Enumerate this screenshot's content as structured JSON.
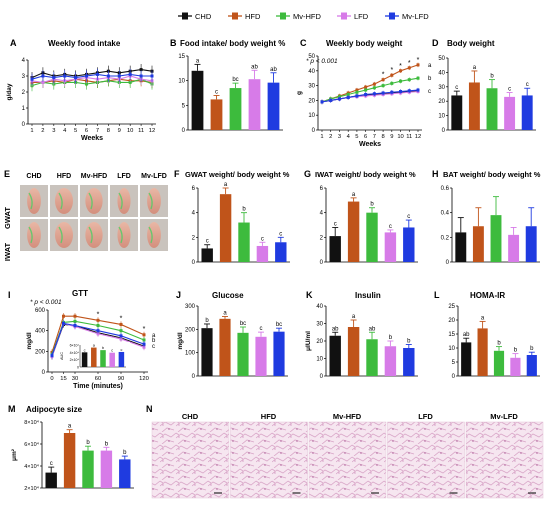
{
  "legend": [
    {
      "label": "CHD",
      "color": "#111111"
    },
    {
      "label": "HFD",
      "color": "#c0541a"
    },
    {
      "label": "Mv-HFD",
      "color": "#3dbb3d"
    },
    {
      "label": "LFD",
      "color": "#d77be8"
    },
    {
      "label": "Mv-LFD",
      "color": "#1f3be0"
    }
  ],
  "panels": {
    "A": {
      "letter": "A",
      "title": "Weekly food intake"
    },
    "B": {
      "letter": "B",
      "title": "Food intake/ body weight %"
    },
    "C": {
      "letter": "C",
      "title": "Weekly body weight",
      "note": "* p < 0.001"
    },
    "D": {
      "letter": "D",
      "title": "Body weight"
    },
    "E": {
      "letter": "E",
      "cols": [
        "CHD",
        "HFD",
        "Mv-HFD",
        "LFD",
        "Mv-LFD"
      ],
      "rows": [
        "GWAT",
        "IWAT"
      ]
    },
    "F": {
      "letter": "F",
      "title": "GWAT weight/ body weight %"
    },
    "G": {
      "letter": "G",
      "title": "IWAT weight/ body weight %"
    },
    "H": {
      "letter": "H",
      "title": "BAT weight/ body weight %"
    },
    "I": {
      "letter": "I",
      "title": "GTT",
      "note": "* p < 0.001"
    },
    "J": {
      "letter": "J",
      "title": "Glucose"
    },
    "K": {
      "letter": "K",
      "title": "Insulin"
    },
    "L": {
      "letter": "L",
      "title": "HOMA-IR"
    },
    "M": {
      "letter": "M",
      "title": "Adipocyte size"
    },
    "N": {
      "letter": "N",
      "cols": [
        "CHD",
        "HFD",
        "Mv-HFD",
        "LFD",
        "Mv-LFD"
      ]
    }
  },
  "chart_data": [
    {
      "id": "A",
      "type": "line",
      "title": "Weekly food intake",
      "xlabel": "Weeks",
      "ylabel": "g/day",
      "x": [
        1,
        2,
        3,
        4,
        5,
        6,
        7,
        8,
        9,
        10,
        11,
        12
      ],
      "ylim": [
        0,
        4
      ],
      "yticks": [
        0,
        1,
        2,
        3,
        4
      ],
      "series": [
        {
          "name": "CHD",
          "values": [
            2.9,
            3.2,
            3.0,
            3.1,
            3.0,
            3.1,
            3.2,
            3.3,
            3.2,
            3.3,
            3.4,
            3.3
          ]
        },
        {
          "name": "HFD",
          "values": [
            2.6,
            2.6,
            2.7,
            2.6,
            2.8,
            2.7,
            2.6,
            2.7,
            2.8,
            2.7,
            2.7,
            2.6
          ]
        },
        {
          "name": "Mv-HFD",
          "values": [
            2.4,
            2.6,
            2.5,
            2.6,
            2.6,
            2.5,
            2.6,
            2.7,
            2.6,
            2.6,
            2.8,
            2.5
          ]
        },
        {
          "name": "LFD",
          "values": [
            2.7,
            2.6,
            2.8,
            2.7,
            2.8,
            2.9,
            2.8,
            2.9,
            2.8,
            3.0,
            2.8,
            2.7
          ]
        },
        {
          "name": "Mv-LFD",
          "values": [
            2.8,
            3.0,
            2.9,
            3.0,
            2.9,
            3.0,
            3.1,
            3.0,
            3.0,
            3.1,
            3.0,
            3.0
          ]
        }
      ]
    },
    {
      "id": "B",
      "type": "bar",
      "title": "Food intake/ body weight %",
      "ylim": [
        0,
        15
      ],
      "yticks": [
        0,
        5,
        10,
        15
      ],
      "values": [
        12,
        6.2,
        8.5,
        10.3,
        9.6
      ],
      "errors": [
        1.3,
        0.8,
        1.0,
        1.8,
        2.0
      ],
      "labels": [
        "a",
        "c",
        "bc",
        "ab",
        "ab"
      ]
    },
    {
      "id": "C",
      "type": "line",
      "title": "Weekly body weight",
      "xlabel": "Weeks",
      "ylabel": "g",
      "x": [
        1,
        2,
        3,
        4,
        5,
        6,
        7,
        8,
        9,
        10,
        11,
        12
      ],
      "ylim": [
        0,
        50
      ],
      "yticks": [
        0,
        10,
        20,
        30,
        40,
        50
      ],
      "series": [
        {
          "name": "CHD",
          "values": [
            19,
            20,
            21,
            22,
            23,
            23.5,
            24,
            24.5,
            25,
            25.5,
            26,
            26.5
          ]
        },
        {
          "name": "HFD",
          "values": [
            19,
            21,
            23,
            25,
            27,
            29,
            31,
            34,
            37,
            40,
            42,
            44
          ]
        },
        {
          "name": "Mv-HFD",
          "values": [
            19,
            21,
            22.5,
            24,
            25.5,
            27,
            28.5,
            30,
            31.5,
            33,
            34,
            35
          ]
        },
        {
          "name": "LFD",
          "values": [
            19,
            20,
            21,
            22,
            22.5,
            23,
            23.5,
            24,
            24.5,
            25,
            25.5,
            26
          ]
        },
        {
          "name": "Mv-LFD",
          "values": [
            19,
            20,
            21,
            22,
            23,
            24,
            24.5,
            25,
            25.5,
            26,
            26.5,
            27
          ]
        }
      ],
      "end_labels": [
        "a",
        "b",
        "c"
      ],
      "star_weeks": [
        8,
        9,
        10,
        11,
        12
      ]
    },
    {
      "id": "D",
      "type": "bar",
      "title": "Body weight",
      "ylim": [
        0,
        50
      ],
      "yticks": [
        0,
        10,
        20,
        30,
        40,
        50
      ],
      "values": [
        24,
        33,
        29,
        23,
        24
      ],
      "errors": [
        3,
        8,
        6,
        3,
        5
      ],
      "labels": [
        "c",
        "a",
        "b",
        "c",
        "c"
      ]
    },
    {
      "id": "F",
      "type": "bar",
      "title": "GWAT weight/ body weight %",
      "ylim": [
        0,
        6
      ],
      "yticks": [
        0,
        2,
        4,
        6
      ],
      "values": [
        1.1,
        5.5,
        3.2,
        1.3,
        1.6
      ],
      "errors": [
        0.3,
        0.5,
        0.8,
        0.3,
        0.4
      ],
      "labels": [
        "c",
        "a",
        "b",
        "c",
        "c"
      ]
    },
    {
      "id": "G",
      "type": "bar",
      "title": "IWAT weight/ body weight %",
      "ylim": [
        0,
        6
      ],
      "yticks": [
        0,
        2,
        4,
        6
      ],
      "values": [
        2.1,
        4.9,
        4.0,
        2.4,
        2.8
      ],
      "errors": [
        0.7,
        0.3,
        0.4,
        0.2,
        0.6
      ],
      "labels": [
        "c",
        "a",
        "b",
        "c",
        "c"
      ]
    },
    {
      "id": "H",
      "type": "bar",
      "title": "BAT weight/ body weight %",
      "ylim": [
        0,
        0.6
      ],
      "yticks": [
        0,
        0.2,
        0.4,
        0.6
      ],
      "values": [
        0.24,
        0.29,
        0.38,
        0.22,
        0.29
      ],
      "errors": [
        0.12,
        0.15,
        0.15,
        0.06,
        0.15
      ],
      "labels": [
        "",
        "",
        "",
        "",
        ""
      ]
    },
    {
      "id": "I",
      "type": "line",
      "title": "GTT",
      "xlabel": "Time (minutes)",
      "ylabel": "mg/dl",
      "x": [
        0,
        15,
        30,
        60,
        90,
        120
      ],
      "ylim": [
        0,
        600
      ],
      "yticks": [
        0,
        200,
        400,
        600
      ],
      "series": [
        {
          "name": "CHD",
          "values": [
            150,
            460,
            450,
            380,
            330,
            250
          ]
        },
        {
          "name": "HFD",
          "values": [
            190,
            540,
            540,
            500,
            460,
            360
          ]
        },
        {
          "name": "Mv-HFD",
          "values": [
            170,
            480,
            490,
            450,
            400,
            310
          ]
        },
        {
          "name": "LFD",
          "values": [
            150,
            470,
            440,
            370,
            320,
            240
          ]
        },
        {
          "name": "Mv-LFD",
          "values": [
            160,
            470,
            450,
            400,
            350,
            270
          ]
        }
      ],
      "end_labels": [
        "a",
        "b",
        "c"
      ],
      "star_times": [
        60,
        90,
        120
      ],
      "inset": {
        "ylabel": "AUC",
        "yticks": [
          "6×10⁴",
          "4×10⁴",
          "2×10⁴",
          "0"
        ],
        "values": [
          4.0,
          5.3,
          4.6,
          3.9,
          4.1
        ],
        "labels": [
          "c",
          "a",
          "b",
          "c",
          "c"
        ],
        "ymax": 6
      }
    },
    {
      "id": "J",
      "type": "bar",
      "title": "Glucose",
      "ylabel": "mg/dl",
      "ylim": [
        0,
        300
      ],
      "yticks": [
        0,
        100,
        200,
        300
      ],
      "values": [
        205,
        245,
        185,
        168,
        190
      ],
      "errors": [
        18,
        10,
        25,
        20,
        15
      ],
      "labels": [
        "b",
        "a",
        "bc",
        "c",
        "bc"
      ]
    },
    {
      "id": "K",
      "type": "bar",
      "title": "Insulin",
      "ylabel": "μIU/ml",
      "ylim": [
        0,
        40
      ],
      "yticks": [
        0,
        10,
        20,
        30,
        40
      ],
      "values": [
        23,
        28,
        21,
        17,
        16
      ],
      "errors": [
        2,
        4,
        4,
        3,
        2
      ],
      "labels": [
        "ab",
        "a",
        "ab",
        "b",
        "b"
      ]
    },
    {
      "id": "L",
      "type": "bar",
      "title": "HOMA-IR",
      "ylim": [
        0,
        25
      ],
      "yticks": [
        0,
        5,
        10,
        15,
        20,
        25
      ],
      "values": [
        12,
        17,
        9,
        6.5,
        7.5
      ],
      "errors": [
        1.5,
        2.5,
        1.5,
        1.5,
        1.0
      ],
      "labels": [
        "ab",
        "a",
        "b",
        "b",
        "b"
      ]
    },
    {
      "id": "M",
      "type": "bar",
      "title": "Adipocyte size",
      "ylabel": "μm²",
      "ylim": [
        2,
        8
      ],
      "yticks": [
        2,
        4,
        6,
        8
      ],
      "ytick_labels": [
        "2×10⁴",
        "4×10⁴",
        "6×10⁴",
        "8×10⁴"
      ],
      "values": [
        3.4,
        7.0,
        5.4,
        5.4,
        4.6
      ],
      "errors": [
        0.5,
        0.3,
        0.4,
        0.3,
        0.3
      ],
      "labels": [
        "c",
        "a",
        "b",
        "b",
        "b"
      ]
    }
  ]
}
